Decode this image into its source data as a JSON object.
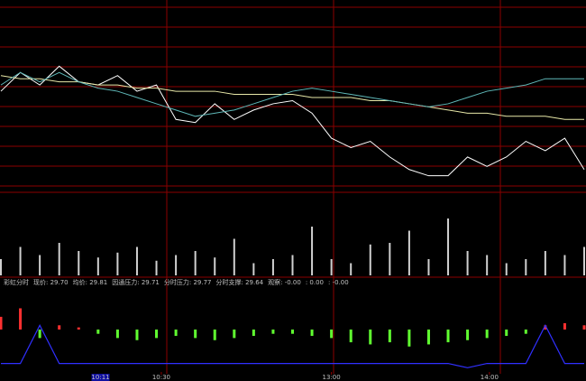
{
  "chart_data": [
    {
      "type": "line",
      "grid": true,
      "x": [
        0,
        8,
        16,
        24,
        32,
        40,
        48,
        56,
        64,
        72,
        80,
        88,
        96,
        104,
        112,
        120,
        128,
        136,
        144,
        152,
        160,
        168,
        176,
        184,
        192,
        200,
        208,
        216,
        224,
        232,
        240
      ],
      "xlim": [
        0,
        240
      ],
      "ylim": [
        29.5,
        30.1
      ],
      "series": [
        {
          "color": "#ffffff",
          "values": [
            29.82,
            29.88,
            29.84,
            29.9,
            29.85,
            29.84,
            29.87,
            29.82,
            29.84,
            29.73,
            29.72,
            29.78,
            29.73,
            29.76,
            29.78,
            29.79,
            29.75,
            29.67,
            29.64,
            29.66,
            29.61,
            29.57,
            29.55,
            29.55,
            29.61,
            29.58,
            29.61,
            29.66,
            29.63,
            29.67,
            29.57
          ]
        },
        {
          "color": "#e8e8a8",
          "values": [
            29.87,
            29.86,
            29.86,
            29.85,
            29.85,
            29.84,
            29.84,
            29.83,
            29.83,
            29.82,
            29.82,
            29.82,
            29.81,
            29.81,
            29.81,
            29.81,
            29.8,
            29.8,
            29.8,
            29.79,
            29.79,
            29.78,
            29.77,
            29.76,
            29.75,
            29.75,
            29.74,
            29.74,
            29.74,
            29.73,
            29.73
          ]
        },
        {
          "color": "#5fb8b8",
          "values": [
            29.84,
            29.88,
            29.85,
            29.88,
            29.85,
            29.83,
            29.82,
            29.8,
            29.78,
            29.76,
            29.74,
            29.75,
            29.76,
            29.78,
            29.8,
            29.82,
            29.83,
            29.82,
            29.81,
            29.8,
            29.79,
            29.78,
            29.77,
            29.78,
            29.8,
            29.82,
            29.83,
            29.84,
            29.86,
            29.86,
            29.86
          ]
        }
      ]
    },
    {
      "type": "bar",
      "color": "#d0d0d0",
      "x": [
        0,
        8,
        16,
        24,
        32,
        40,
        48,
        56,
        64,
        72,
        80,
        88,
        96,
        104,
        112,
        120,
        128,
        136,
        144,
        152,
        160,
        168,
        176,
        184,
        192,
        200,
        208,
        216,
        224,
        232,
        240
      ],
      "xlim": [
        0,
        240
      ],
      "ylim": [
        0,
        100
      ],
      "values": [
        20,
        35,
        25,
        40,
        30,
        22,
        28,
        35,
        18,
        25,
        30,
        22,
        45,
        15,
        20,
        25,
        60,
        20,
        15,
        38,
        40,
        55,
        20,
        70,
        30,
        25,
        15,
        20,
        30,
        25,
        35
      ]
    },
    {
      "type": "indicator",
      "header": [
        "彩虹分时",
        "现价: 29.70",
        "均价: 29.81",
        "因通压力: 29.71",
        "分时压力: 29.77",
        "分时支撑: 29.64",
        "观察: -0.00",
        ": 0.00",
        ": -0.00"
      ],
      "header_colors": [
        "#c0c0c0",
        "#ffffff",
        "#ffffff",
        "#ff40ff",
        "#40ff40",
        "#ffffff",
        "#4040ff",
        "#ff6060",
        "#40ff40"
      ],
      "x": [
        0,
        8,
        16,
        24,
        32,
        40,
        48,
        56,
        64,
        72,
        80,
        88,
        96,
        104,
        112,
        120,
        128,
        136,
        144,
        152,
        160,
        168,
        176,
        184,
        192,
        200,
        208,
        216,
        224,
        232,
        240
      ],
      "xlim": [
        0,
        240
      ],
      "ylim": [
        -1,
        1
      ],
      "values": [
        0.3,
        0.5,
        -0.2,
        0.1,
        0.05,
        -0.1,
        -0.2,
        -0.25,
        -0.2,
        -0.15,
        -0.2,
        -0.25,
        -0.2,
        -0.15,
        -0.1,
        -0.1,
        -0.15,
        -0.2,
        -0.3,
        -0.35,
        -0.3,
        -0.4,
        -0.35,
        -0.3,
        -0.25,
        -0.2,
        -0.15,
        -0.1,
        0.1,
        0.15,
        0.1
      ],
      "line": {
        "color": "#3030ff",
        "values": [
          -0.8,
          -0.8,
          0.1,
          -0.8,
          -0.8,
          -0.8,
          -0.8,
          -0.8,
          -0.8,
          -0.8,
          -0.8,
          -0.8,
          -0.8,
          -0.8,
          -0.8,
          -0.8,
          -0.8,
          -0.8,
          -0.8,
          -0.8,
          -0.8,
          -0.8,
          -0.8,
          -0.8,
          -0.9,
          -0.8,
          -0.8,
          -0.8,
          0.1,
          -0.8,
          -0.8
        ]
      },
      "xticks": [
        {
          "value": 66,
          "label": "10:30"
        },
        {
          "value": 136,
          "label": "13:00"
        },
        {
          "value": 201,
          "label": "14:00"
        }
      ],
      "cursor": {
        "value": 41,
        "label": "10:11"
      }
    }
  ]
}
